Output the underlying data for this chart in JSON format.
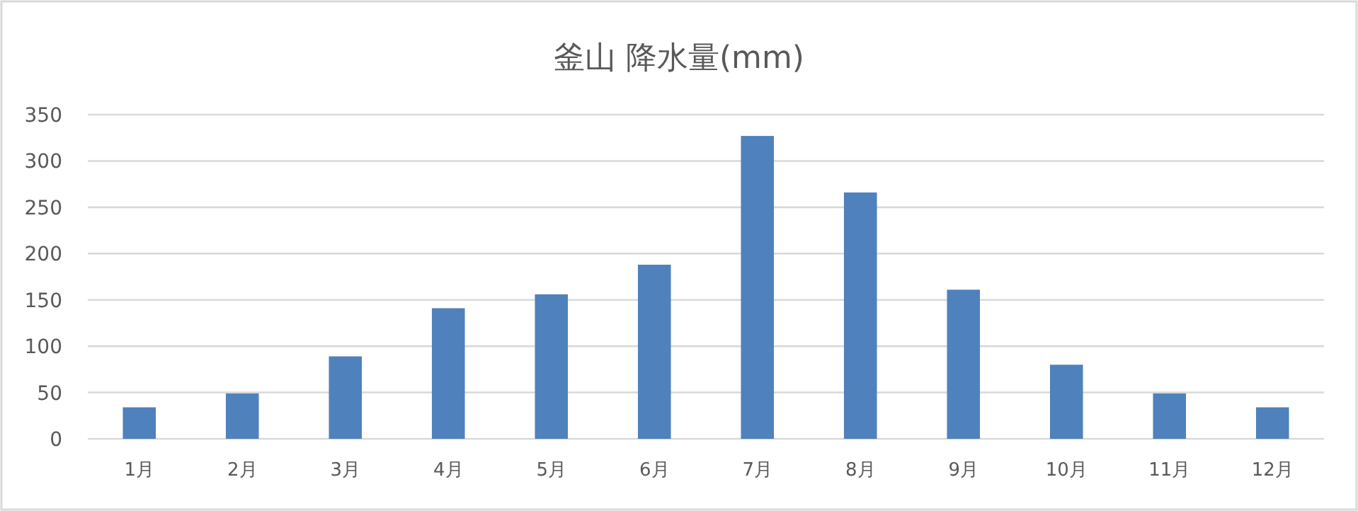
{
  "chart_data": {
    "type": "bar",
    "title": "釜山 降水量(mm)",
    "categories": [
      "1月",
      "2月",
      "3月",
      "4月",
      "5月",
      "6月",
      "7月",
      "8月",
      "9月",
      "10月",
      "11月",
      "12月"
    ],
    "values": [
      34,
      49,
      89,
      141,
      156,
      188,
      327,
      266,
      161,
      80,
      49,
      34
    ],
    "color": "#4f81bd",
    "ylim": [
      0,
      350
    ],
    "yticks": [
      0,
      50,
      100,
      150,
      200,
      250,
      300,
      350
    ],
    "grid": "y"
  }
}
